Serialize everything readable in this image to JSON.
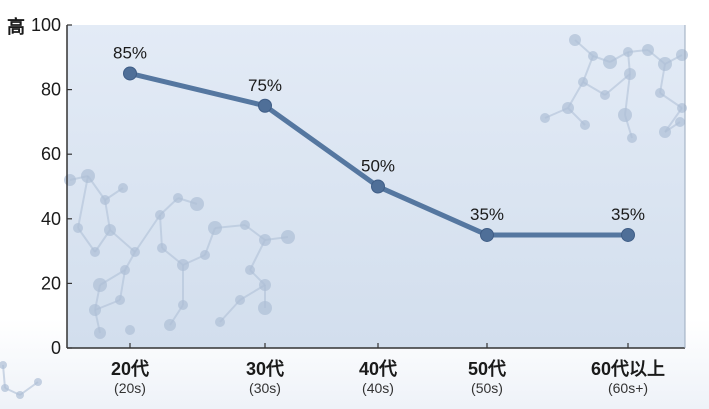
{
  "colors": {
    "plot_bg": "#dce6f3",
    "line": "#5577a0",
    "marker": "#4f6f98",
    "axis": "#333333",
    "molecule": "#aebfd6"
  },
  "chart_data": {
    "type": "line",
    "y_axis_top_label": "高",
    "categories": [
      "20代",
      "30代",
      "40代",
      "50代",
      "60代以上"
    ],
    "category_sublabels": [
      "(20s)",
      "(30s)",
      "(40s)",
      "(50s)",
      "(60s+)"
    ],
    "series": [
      {
        "values": [
          85,
          75,
          50,
          35,
          35
        ],
        "data_labels": [
          "85%",
          "75%",
          "50%",
          "35%",
          "35%"
        ]
      }
    ],
    "ylim": [
      0,
      100
    ],
    "yticks": [
      "0",
      "20",
      "40",
      "60",
      "80",
      "100"
    ],
    "xlabel": "",
    "ylabel": "",
    "grid": false,
    "legend": "none"
  }
}
